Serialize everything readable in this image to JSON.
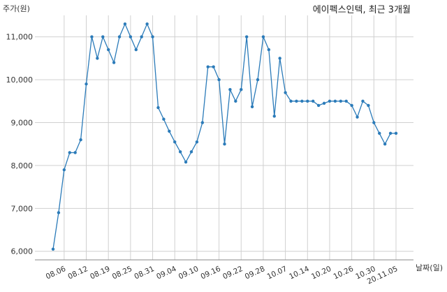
{
  "chart_data": {
    "type": "line",
    "title": "에이펙스인텍, 최근 3개월",
    "xlabel": "날짜(일)",
    "ylabel": "주가(원)",
    "ylim": [
      5800,
      11500
    ],
    "grid": true,
    "y_ticks": [
      6000,
      7000,
      8000,
      9000,
      10000,
      11000
    ],
    "y_tick_labels": [
      "6,000",
      "7,000",
      "8,000",
      "9,000",
      "10,000",
      "11,000"
    ],
    "x_ticks": [
      {
        "index": 2,
        "label": "08.06"
      },
      {
        "index": 6,
        "label": "08.12"
      },
      {
        "index": 10,
        "label": "08.19"
      },
      {
        "index": 14,
        "label": "08.25"
      },
      {
        "index": 18,
        "label": "08.31"
      },
      {
        "index": 22,
        "label": "09.04"
      },
      {
        "index": 26,
        "label": "09.10"
      },
      {
        "index": 30,
        "label": "09.16"
      },
      {
        "index": 34,
        "label": "09.22"
      },
      {
        "index": 38,
        "label": "09.28"
      },
      {
        "index": 42,
        "label": "10.07"
      },
      {
        "index": 46,
        "label": "10.14"
      },
      {
        "index": 50,
        "label": "10.20"
      },
      {
        "index": 54,
        "label": "10.26"
      },
      {
        "index": 58,
        "label": "10.30"
      },
      {
        "index": 62,
        "label": "20.11.05"
      }
    ],
    "series": [
      {
        "color": "#2b7bb9",
        "values": [
          6050,
          6900,
          7900,
          8300,
          8300,
          8600,
          9900,
          11000,
          10500,
          11000,
          10700,
          10400,
          11000,
          11300,
          11000,
          10700,
          11000,
          11300,
          11000,
          9350,
          9080,
          8800,
          8550,
          8320,
          8080,
          8320,
          8550,
          9000,
          10300,
          10300,
          10000,
          8500,
          9770,
          9500,
          9770,
          11000,
          9370,
          10000,
          11000,
          10700,
          9150,
          10500,
          9700,
          9500,
          9500,
          9500,
          9500,
          9500,
          9400,
          9450,
          9500,
          9500,
          9500,
          9500,
          9400,
          9130,
          9500,
          9400,
          9000,
          8750,
          8500,
          8750,
          8750
        ]
      }
    ]
  }
}
